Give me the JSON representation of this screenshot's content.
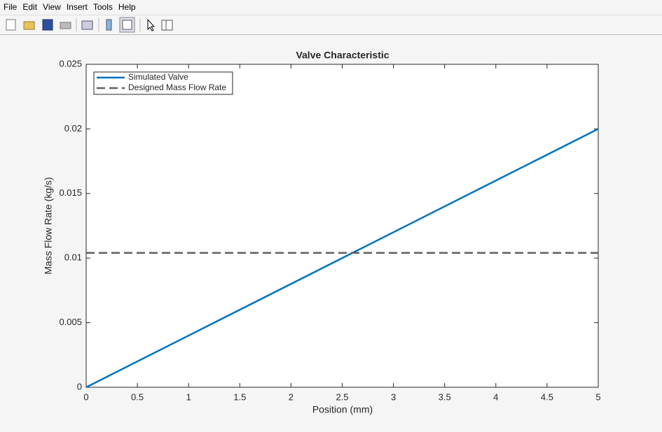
{
  "menu": [
    "File",
    "Edit",
    "View",
    "Insert",
    "Tools",
    "Help"
  ],
  "chart_data": {
    "type": "line",
    "title": "Valve Characteristic",
    "x_label": "Position (mm)",
    "y_label": "Mass Flow Rate (kg/s)",
    "xlim": [
      0,
      5
    ],
    "xticks": [
      0,
      0.5,
      1,
      1.5,
      2,
      2.5,
      3,
      3.5,
      4,
      4.5,
      5
    ],
    "ylim": [
      0,
      0.025
    ],
    "yticks": [
      0,
      0.005,
      0.01,
      0.015,
      0.02,
      0.025
    ],
    "legend": "upper-left",
    "grid": false,
    "series": [
      {
        "name": "Simulated Valve",
        "color": "#0072bd",
        "style": "solid",
        "x": [
          0,
          5
        ],
        "values": [
          0,
          0.02
        ]
      },
      {
        "name": "Designed Mass Flow Rate",
        "color": "#606060",
        "style": "dashed",
        "x": [
          0,
          5
        ],
        "values": [
          0.0104,
          0.0104
        ]
      }
    ]
  }
}
